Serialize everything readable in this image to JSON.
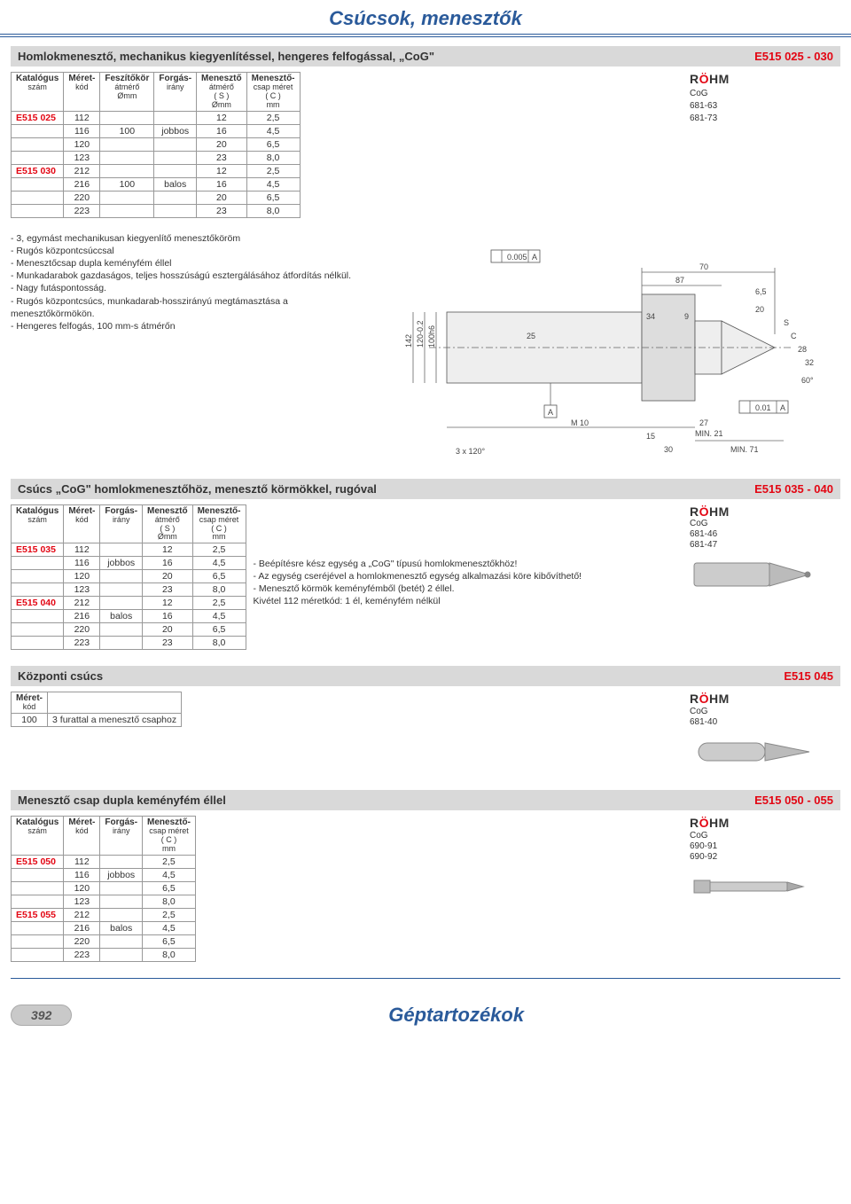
{
  "page": {
    "title": "Csúcsok, menesztők",
    "footer_title": "Géptartozékok",
    "page_number": "392"
  },
  "brand": {
    "name_pre": "R",
    "name_o": "Ö",
    "name_post": "HM"
  },
  "section1": {
    "title": "Homlokmenesztő, mechanikus kiegyenlítéssel, hengeres felfogással, „CoG\"",
    "code": "E515 025 - 030",
    "brand_lines": {
      "l1": "CoG",
      "l2": "681-63",
      "l3": "681-73"
    },
    "headers": {
      "c1": "Katalógus",
      "c1b": "szám",
      "c2": "Méret-",
      "c2b": "kód",
      "c3": "Feszítőkör",
      "c3b": "átmérő",
      "c3u": "Ømm",
      "c4": "Forgás-",
      "c4b": "irány",
      "c5": "Menesztő",
      "c5b": "átmérő",
      "c5c": "( S )",
      "c5u": "Ømm",
      "c6": "Menesztő-",
      "c6b": "csap méret",
      "c6c": "( C )",
      "c6u": "mm"
    },
    "rows": [
      {
        "cat": "E515 025",
        "k": "112",
        "d": "",
        "r": "",
        "s": "12",
        "c": "2,5"
      },
      {
        "cat": "",
        "k": "116",
        "d": "100",
        "r": "jobbos",
        "s": "16",
        "c": "4,5"
      },
      {
        "cat": "",
        "k": "120",
        "d": "",
        "r": "",
        "s": "20",
        "c": "6,5"
      },
      {
        "cat": "",
        "k": "123",
        "d": "",
        "r": "",
        "s": "23",
        "c": "8,0"
      },
      {
        "cat": "E515 030",
        "k": "212",
        "d": "",
        "r": "",
        "s": "12",
        "c": "2,5"
      },
      {
        "cat": "",
        "k": "216",
        "d": "100",
        "r": "balos",
        "s": "16",
        "c": "4,5"
      },
      {
        "cat": "",
        "k": "220",
        "d": "",
        "r": "",
        "s": "20",
        "c": "6,5"
      },
      {
        "cat": "",
        "k": "223",
        "d": "",
        "r": "",
        "s": "23",
        "c": "8,0"
      }
    ],
    "desc": [
      "- 3, egymást mechanikusan kiegyenlítő menesztőköröm",
      "- Rugós központcsúccsal",
      "- Menesztőcsap dupla keményfém éllel",
      "- Munkadarabok gazdaságos, teljes hosszúságú esztergálásához átfordítás nélkül.",
      "- Nagy futáspontosság.",
      "- Rugós központcsúcs, munkadarab-hosszirányú megtámasztása a menesztőkörmökön.",
      "- Hengeres felfogás, 100 mm-s átmérőn"
    ],
    "diagram_labels": {
      "tol1": "0.005",
      "tol1_ref": "A",
      "dim70": "70",
      "dim6_5": "6,5",
      "dim20": "20",
      "dim87": "87",
      "dim25": "25",
      "dim34": "34",
      "dim9": "9",
      "dim142": "142",
      "dim120": "120-0.2",
      "dim100": "100h6",
      "ref_a": "A",
      "tol2": "0.01",
      "tol2_ref": "A",
      "m10": "M 10",
      "dim27": "27",
      "min21": "MIN. 21",
      "dim15": "15",
      "dim30": "30",
      "min71": "MIN. 71",
      "bolt": "3 x 120°",
      "s_label": "S",
      "c_label": "C",
      "dim28": "28",
      "dim32": "32",
      "ang60": "60°"
    }
  },
  "section2": {
    "title": "Csúcs „CoG\" homlokmenesztőhöz, menesztő körmökkel, rugóval",
    "code": "E515 035 - 040",
    "brand_lines": {
      "l1": "CoG",
      "l2": "681-46",
      "l3": "681-47"
    },
    "headers": {
      "c1": "Katalógus",
      "c1b": "szám",
      "c2": "Méret-",
      "c2b": "kód",
      "c4": "Forgás-",
      "c4b": "irány",
      "c5": "Menesztő",
      "c5b": "átmérő",
      "c5c": "( S )",
      "c5u": "Ømm",
      "c6": "Menesztő-",
      "c6b": "csap méret",
      "c6c": "( C )",
      "c6u": "mm"
    },
    "rows": [
      {
        "cat": "E515 035",
        "k": "112",
        "r": "",
        "s": "12",
        "c": "2,5"
      },
      {
        "cat": "",
        "k": "116",
        "r": "jobbos",
        "s": "16",
        "c": "4,5"
      },
      {
        "cat": "",
        "k": "120",
        "r": "",
        "s": "20",
        "c": "6,5"
      },
      {
        "cat": "",
        "k": "123",
        "r": "",
        "s": "23",
        "c": "8,0"
      },
      {
        "cat": "E515 040",
        "k": "212",
        "r": "",
        "s": "12",
        "c": "2,5"
      },
      {
        "cat": "",
        "k": "216",
        "r": "balos",
        "s": "16",
        "c": "4,5"
      },
      {
        "cat": "",
        "k": "220",
        "r": "",
        "s": "20",
        "c": "6,5"
      },
      {
        "cat": "",
        "k": "223",
        "r": "",
        "s": "23",
        "c": "8,0"
      }
    ],
    "notes": [
      "- Beépítésre kész egység a „CoG\" típusú homlokmenesztőkhöz!",
      "- Az egység cseréjével a homlokmenesztő egység alkalmazási köre kibővíthető!",
      "- Menesztő körmök keményfémből (betét) 2 éllel.",
      "  Kivétel 112 méretkód: 1 él, keményfém nélkül"
    ]
  },
  "section3": {
    "title": "Központi csúcs",
    "code": "E515 045",
    "brand_lines": {
      "l1": "CoG",
      "l2": "681-40"
    },
    "headers": {
      "c2": "Méret-",
      "c2b": "kód"
    },
    "rows": [
      {
        "k": "100",
        "note": "3 furattal a menesztő csaphoz"
      }
    ]
  },
  "section4": {
    "title": "Menesztő csap dupla keményfém éllel",
    "code": "E515 050 - 055",
    "brand_lines": {
      "l1": "CoG",
      "l2": "690-91",
      "l3": "690-92"
    },
    "headers": {
      "c1": "Katalógus",
      "c1b": "szám",
      "c2": "Méret-",
      "c2b": "kód",
      "c4": "Forgás-",
      "c4b": "irány",
      "c6": "Menesztő-",
      "c6b": "csap méret",
      "c6c": "( C )",
      "c6u": "mm"
    },
    "rows": [
      {
        "cat": "E515 050",
        "k": "112",
        "r": "",
        "c": "2,5"
      },
      {
        "cat": "",
        "k": "116",
        "r": "jobbos",
        "c": "4,5"
      },
      {
        "cat": "",
        "k": "120",
        "r": "",
        "c": "6,5"
      },
      {
        "cat": "",
        "k": "123",
        "r": "",
        "c": "8,0"
      },
      {
        "cat": "E515 055",
        "k": "212",
        "r": "",
        "c": "2,5"
      },
      {
        "cat": "",
        "k": "216",
        "r": "balos",
        "c": "4,5"
      },
      {
        "cat": "",
        "k": "220",
        "r": "",
        "c": "6,5"
      },
      {
        "cat": "",
        "k": "223",
        "r": "",
        "c": "8,0"
      }
    ]
  }
}
